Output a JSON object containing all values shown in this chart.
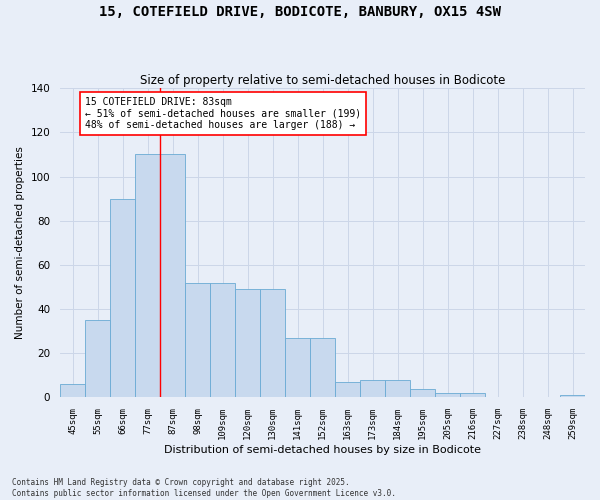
{
  "title": "15, COTEFIELD DRIVE, BODICOTE, BANBURY, OX15 4SW",
  "subtitle": "Size of property relative to semi-detached houses in Bodicote",
  "xlabel": "Distribution of semi-detached houses by size in Bodicote",
  "ylabel": "Number of semi-detached properties",
  "categories": [
    "45sqm",
    "55sqm",
    "66sqm",
    "77sqm",
    "87sqm",
    "98sqm",
    "109sqm",
    "120sqm",
    "130sqm",
    "141sqm",
    "152sqm",
    "163sqm",
    "173sqm",
    "184sqm",
    "195sqm",
    "205sqm",
    "216sqm",
    "227sqm",
    "238sqm",
    "248sqm",
    "259sqm"
  ],
  "values": [
    6,
    35,
    90,
    110,
    110,
    52,
    52,
    49,
    49,
    27,
    27,
    7,
    8,
    8,
    4,
    2,
    2,
    0,
    0,
    0,
    1
  ],
  "bar_color": "#c8d9ee",
  "bar_edge_color": "#6aaad4",
  "grid_color": "#ccd6e8",
  "background_color": "#e8eef8",
  "fig_background_color": "#e8eef8",
  "red_line_index": 3.5,
  "annotation_title": "15 COTEFIELD DRIVE: 83sqm",
  "annotation_line1": "← 51% of semi-detached houses are smaller (199)",
  "annotation_line2": "48% of semi-detached houses are larger (188) →",
  "ylim": [
    0,
    140
  ],
  "yticks": [
    0,
    20,
    40,
    60,
    80,
    100,
    120,
    140
  ],
  "footnote1": "Contains HM Land Registry data © Crown copyright and database right 2025.",
  "footnote2": "Contains public sector information licensed under the Open Government Licence v3.0."
}
